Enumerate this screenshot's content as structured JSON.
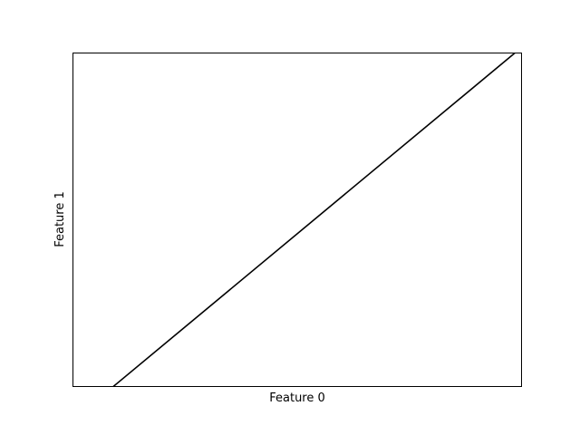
{
  "chart_data": {
    "type": "line",
    "xlabel": "Feature 0",
    "ylabel": "Feature 1",
    "xlim": [
      0,
      1
    ],
    "ylim": [
      0,
      1
    ],
    "xticks": [],
    "yticks": [],
    "grid": false,
    "series": [
      {
        "x": [
          0.09,
          0.985
        ],
        "y": [
          0,
          1
        ],
        "color": "#000000"
      }
    ]
  }
}
